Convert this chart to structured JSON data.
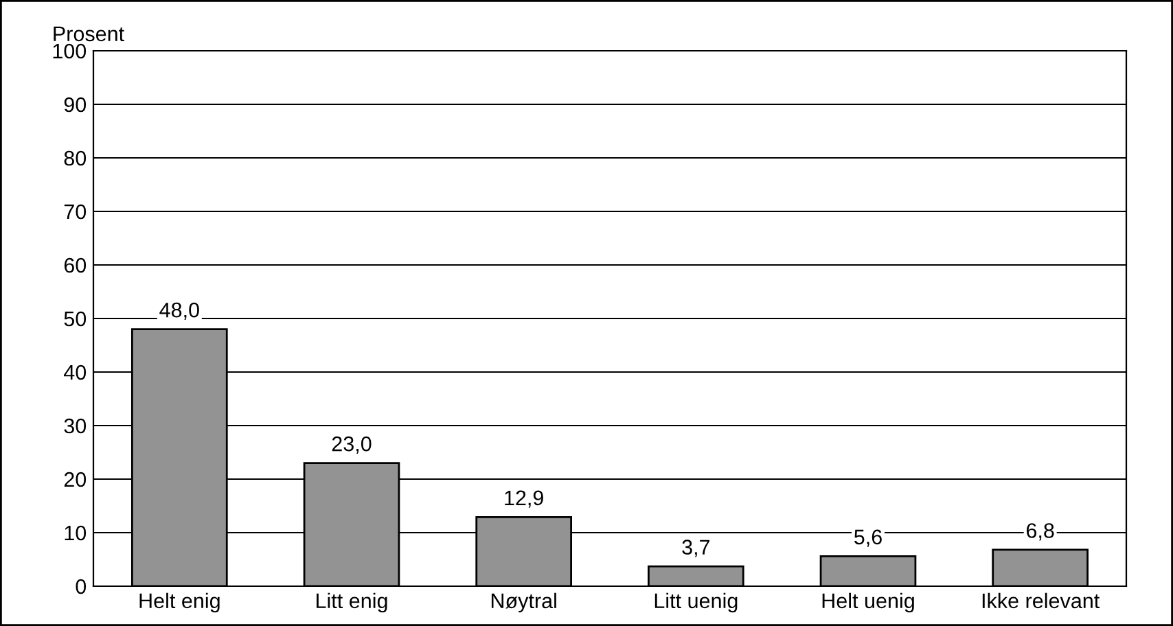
{
  "chart_data": {
    "type": "bar",
    "ylabel": "Prosent",
    "categories": [
      "Helt enig",
      "Litt enig",
      "Nøytral",
      "Litt uenig",
      "Helt uenig",
      "Ikke relevant"
    ],
    "values": [
      48.0,
      23.0,
      12.9,
      3.7,
      5.6,
      6.8
    ],
    "value_labels": [
      "48,0",
      "23,0",
      "12,9",
      "3,7",
      "5,6",
      "6,8"
    ],
    "color": "#939393",
    "ylim": [
      0,
      100
    ],
    "yticks": [
      0,
      10,
      20,
      30,
      40,
      50,
      60,
      70,
      80,
      90,
      100
    ],
    "grid": "y"
  }
}
